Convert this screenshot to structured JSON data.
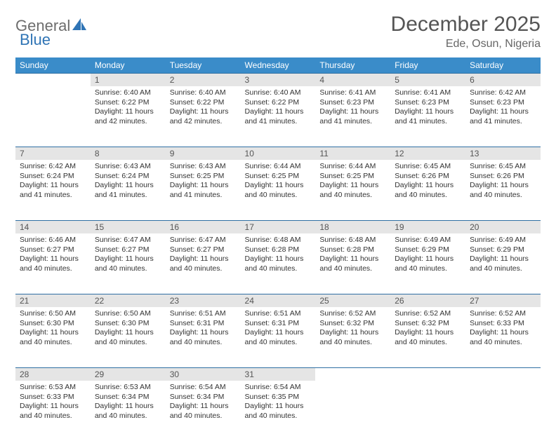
{
  "logo": {
    "word1": "General",
    "word2": "Blue"
  },
  "title": "December 2025",
  "location": "Ede, Osun, Nigeria",
  "colors": {
    "header_bg": "#3a8cc9",
    "header_text": "#ffffff",
    "daynum_bg": "#e5e5e5",
    "rule": "#2f6fa3",
    "body_text": "#333333",
    "title_text": "#555555",
    "logo_gray": "#6d6d6d",
    "logo_blue": "#2f74b5"
  },
  "days_of_week": [
    "Sunday",
    "Monday",
    "Tuesday",
    "Wednesday",
    "Thursday",
    "Friday",
    "Saturday"
  ],
  "weeks": [
    [
      null,
      {
        "n": "1",
        "sr": "6:40 AM",
        "ss": "6:22 PM",
        "dl": "11 hours and 42 minutes."
      },
      {
        "n": "2",
        "sr": "6:40 AM",
        "ss": "6:22 PM",
        "dl": "11 hours and 42 minutes."
      },
      {
        "n": "3",
        "sr": "6:40 AM",
        "ss": "6:22 PM",
        "dl": "11 hours and 41 minutes."
      },
      {
        "n": "4",
        "sr": "6:41 AM",
        "ss": "6:23 PM",
        "dl": "11 hours and 41 minutes."
      },
      {
        "n": "5",
        "sr": "6:41 AM",
        "ss": "6:23 PM",
        "dl": "11 hours and 41 minutes."
      },
      {
        "n": "6",
        "sr": "6:42 AM",
        "ss": "6:23 PM",
        "dl": "11 hours and 41 minutes."
      }
    ],
    [
      {
        "n": "7",
        "sr": "6:42 AM",
        "ss": "6:24 PM",
        "dl": "11 hours and 41 minutes."
      },
      {
        "n": "8",
        "sr": "6:43 AM",
        "ss": "6:24 PM",
        "dl": "11 hours and 41 minutes."
      },
      {
        "n": "9",
        "sr": "6:43 AM",
        "ss": "6:25 PM",
        "dl": "11 hours and 41 minutes."
      },
      {
        "n": "10",
        "sr": "6:44 AM",
        "ss": "6:25 PM",
        "dl": "11 hours and 40 minutes."
      },
      {
        "n": "11",
        "sr": "6:44 AM",
        "ss": "6:25 PM",
        "dl": "11 hours and 40 minutes."
      },
      {
        "n": "12",
        "sr": "6:45 AM",
        "ss": "6:26 PM",
        "dl": "11 hours and 40 minutes."
      },
      {
        "n": "13",
        "sr": "6:45 AM",
        "ss": "6:26 PM",
        "dl": "11 hours and 40 minutes."
      }
    ],
    [
      {
        "n": "14",
        "sr": "6:46 AM",
        "ss": "6:27 PM",
        "dl": "11 hours and 40 minutes."
      },
      {
        "n": "15",
        "sr": "6:47 AM",
        "ss": "6:27 PM",
        "dl": "11 hours and 40 minutes."
      },
      {
        "n": "16",
        "sr": "6:47 AM",
        "ss": "6:27 PM",
        "dl": "11 hours and 40 minutes."
      },
      {
        "n": "17",
        "sr": "6:48 AM",
        "ss": "6:28 PM",
        "dl": "11 hours and 40 minutes."
      },
      {
        "n": "18",
        "sr": "6:48 AM",
        "ss": "6:28 PM",
        "dl": "11 hours and 40 minutes."
      },
      {
        "n": "19",
        "sr": "6:49 AM",
        "ss": "6:29 PM",
        "dl": "11 hours and 40 minutes."
      },
      {
        "n": "20",
        "sr": "6:49 AM",
        "ss": "6:29 PM",
        "dl": "11 hours and 40 minutes."
      }
    ],
    [
      {
        "n": "21",
        "sr": "6:50 AM",
        "ss": "6:30 PM",
        "dl": "11 hours and 40 minutes."
      },
      {
        "n": "22",
        "sr": "6:50 AM",
        "ss": "6:30 PM",
        "dl": "11 hours and 40 minutes."
      },
      {
        "n": "23",
        "sr": "6:51 AM",
        "ss": "6:31 PM",
        "dl": "11 hours and 40 minutes."
      },
      {
        "n": "24",
        "sr": "6:51 AM",
        "ss": "6:31 PM",
        "dl": "11 hours and 40 minutes."
      },
      {
        "n": "25",
        "sr": "6:52 AM",
        "ss": "6:32 PM",
        "dl": "11 hours and 40 minutes."
      },
      {
        "n": "26",
        "sr": "6:52 AM",
        "ss": "6:32 PM",
        "dl": "11 hours and 40 minutes."
      },
      {
        "n": "27",
        "sr": "6:52 AM",
        "ss": "6:33 PM",
        "dl": "11 hours and 40 minutes."
      }
    ],
    [
      {
        "n": "28",
        "sr": "6:53 AM",
        "ss": "6:33 PM",
        "dl": "11 hours and 40 minutes."
      },
      {
        "n": "29",
        "sr": "6:53 AM",
        "ss": "6:34 PM",
        "dl": "11 hours and 40 minutes."
      },
      {
        "n": "30",
        "sr": "6:54 AM",
        "ss": "6:34 PM",
        "dl": "11 hours and 40 minutes."
      },
      {
        "n": "31",
        "sr": "6:54 AM",
        "ss": "6:35 PM",
        "dl": "11 hours and 40 minutes."
      },
      null,
      null,
      null
    ]
  ],
  "labels": {
    "sunrise": "Sunrise:",
    "sunset": "Sunset:",
    "daylight": "Daylight:"
  }
}
